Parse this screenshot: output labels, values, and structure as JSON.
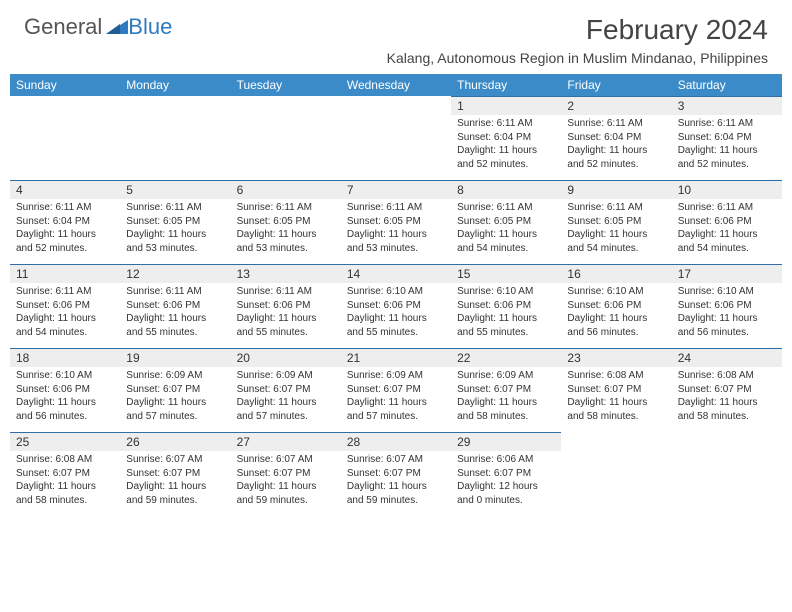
{
  "brand": {
    "text1": "General",
    "text2": "Blue"
  },
  "title": "February 2024",
  "location": "Kalang, Autonomous Region in Muslim Mindanao, Philippines",
  "day_headers": [
    "Sunday",
    "Monday",
    "Tuesday",
    "Wednesday",
    "Thursday",
    "Friday",
    "Saturday"
  ],
  "colors": {
    "header_bg": "#3b8bc9",
    "header_text": "#ffffff",
    "daynum_bg": "#eeeeee",
    "row_divider": "#2f6fa8",
    "text": "#333333",
    "logo_gray": "#555555",
    "logo_blue": "#2f7bbf"
  },
  "weeks": [
    [
      null,
      null,
      null,
      null,
      {
        "n": "1",
        "sunrise": "6:11 AM",
        "sunset": "6:04 PM",
        "dl1": "Daylight: 11 hours",
        "dl2": "and 52 minutes."
      },
      {
        "n": "2",
        "sunrise": "6:11 AM",
        "sunset": "6:04 PM",
        "dl1": "Daylight: 11 hours",
        "dl2": "and 52 minutes."
      },
      {
        "n": "3",
        "sunrise": "6:11 AM",
        "sunset": "6:04 PM",
        "dl1": "Daylight: 11 hours",
        "dl2": "and 52 minutes."
      }
    ],
    [
      {
        "n": "4",
        "sunrise": "6:11 AM",
        "sunset": "6:04 PM",
        "dl1": "Daylight: 11 hours",
        "dl2": "and 52 minutes."
      },
      {
        "n": "5",
        "sunrise": "6:11 AM",
        "sunset": "6:05 PM",
        "dl1": "Daylight: 11 hours",
        "dl2": "and 53 minutes."
      },
      {
        "n": "6",
        "sunrise": "6:11 AM",
        "sunset": "6:05 PM",
        "dl1": "Daylight: 11 hours",
        "dl2": "and 53 minutes."
      },
      {
        "n": "7",
        "sunrise": "6:11 AM",
        "sunset": "6:05 PM",
        "dl1": "Daylight: 11 hours",
        "dl2": "and 53 minutes."
      },
      {
        "n": "8",
        "sunrise": "6:11 AM",
        "sunset": "6:05 PM",
        "dl1": "Daylight: 11 hours",
        "dl2": "and 54 minutes."
      },
      {
        "n": "9",
        "sunrise": "6:11 AM",
        "sunset": "6:05 PM",
        "dl1": "Daylight: 11 hours",
        "dl2": "and 54 minutes."
      },
      {
        "n": "10",
        "sunrise": "6:11 AM",
        "sunset": "6:06 PM",
        "dl1": "Daylight: 11 hours",
        "dl2": "and 54 minutes."
      }
    ],
    [
      {
        "n": "11",
        "sunrise": "6:11 AM",
        "sunset": "6:06 PM",
        "dl1": "Daylight: 11 hours",
        "dl2": "and 54 minutes."
      },
      {
        "n": "12",
        "sunrise": "6:11 AM",
        "sunset": "6:06 PM",
        "dl1": "Daylight: 11 hours",
        "dl2": "and 55 minutes."
      },
      {
        "n": "13",
        "sunrise": "6:11 AM",
        "sunset": "6:06 PM",
        "dl1": "Daylight: 11 hours",
        "dl2": "and 55 minutes."
      },
      {
        "n": "14",
        "sunrise": "6:10 AM",
        "sunset": "6:06 PM",
        "dl1": "Daylight: 11 hours",
        "dl2": "and 55 minutes."
      },
      {
        "n": "15",
        "sunrise": "6:10 AM",
        "sunset": "6:06 PM",
        "dl1": "Daylight: 11 hours",
        "dl2": "and 55 minutes."
      },
      {
        "n": "16",
        "sunrise": "6:10 AM",
        "sunset": "6:06 PM",
        "dl1": "Daylight: 11 hours",
        "dl2": "and 56 minutes."
      },
      {
        "n": "17",
        "sunrise": "6:10 AM",
        "sunset": "6:06 PM",
        "dl1": "Daylight: 11 hours",
        "dl2": "and 56 minutes."
      }
    ],
    [
      {
        "n": "18",
        "sunrise": "6:10 AM",
        "sunset": "6:06 PM",
        "dl1": "Daylight: 11 hours",
        "dl2": "and 56 minutes."
      },
      {
        "n": "19",
        "sunrise": "6:09 AM",
        "sunset": "6:07 PM",
        "dl1": "Daylight: 11 hours",
        "dl2": "and 57 minutes."
      },
      {
        "n": "20",
        "sunrise": "6:09 AM",
        "sunset": "6:07 PM",
        "dl1": "Daylight: 11 hours",
        "dl2": "and 57 minutes."
      },
      {
        "n": "21",
        "sunrise": "6:09 AM",
        "sunset": "6:07 PM",
        "dl1": "Daylight: 11 hours",
        "dl2": "and 57 minutes."
      },
      {
        "n": "22",
        "sunrise": "6:09 AM",
        "sunset": "6:07 PM",
        "dl1": "Daylight: 11 hours",
        "dl2": "and 58 minutes."
      },
      {
        "n": "23",
        "sunrise": "6:08 AM",
        "sunset": "6:07 PM",
        "dl1": "Daylight: 11 hours",
        "dl2": "and 58 minutes."
      },
      {
        "n": "24",
        "sunrise": "6:08 AM",
        "sunset": "6:07 PM",
        "dl1": "Daylight: 11 hours",
        "dl2": "and 58 minutes."
      }
    ],
    [
      {
        "n": "25",
        "sunrise": "6:08 AM",
        "sunset": "6:07 PM",
        "dl1": "Daylight: 11 hours",
        "dl2": "and 58 minutes."
      },
      {
        "n": "26",
        "sunrise": "6:07 AM",
        "sunset": "6:07 PM",
        "dl1": "Daylight: 11 hours",
        "dl2": "and 59 minutes."
      },
      {
        "n": "27",
        "sunrise": "6:07 AM",
        "sunset": "6:07 PM",
        "dl1": "Daylight: 11 hours",
        "dl2": "and 59 minutes."
      },
      {
        "n": "28",
        "sunrise": "6:07 AM",
        "sunset": "6:07 PM",
        "dl1": "Daylight: 11 hours",
        "dl2": "and 59 minutes."
      },
      {
        "n": "29",
        "sunrise": "6:06 AM",
        "sunset": "6:07 PM",
        "dl1": "Daylight: 12 hours",
        "dl2": "and 0 minutes."
      },
      null,
      null
    ]
  ],
  "labels": {
    "sunrise": "Sunrise: ",
    "sunset": "Sunset: "
  }
}
